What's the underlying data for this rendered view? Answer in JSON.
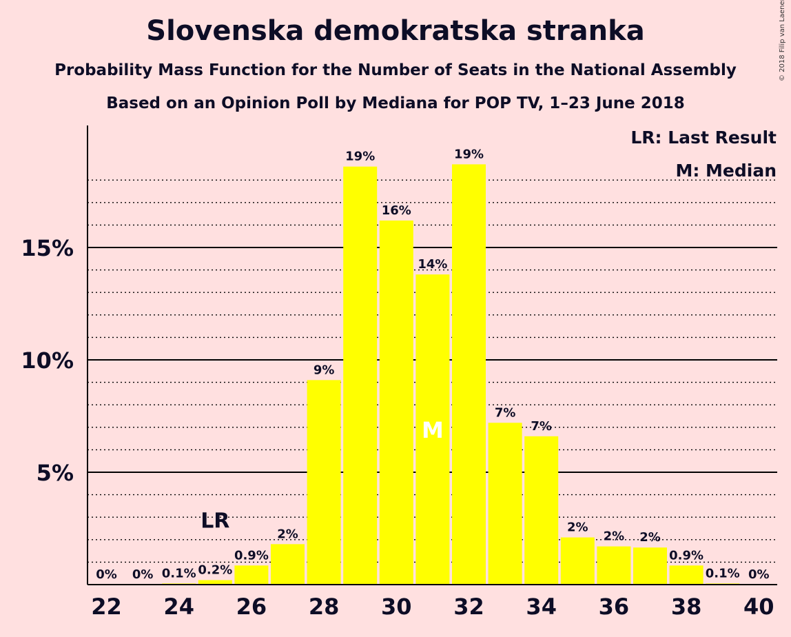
{
  "title": "Slovenska demokratska stranka",
  "subtitle": "Probability Mass Function for the Number of Seats in the National Assembly",
  "subtitle2": "Based on an Opinion Poll by Mediana for POP TV, 1–23 June 2018",
  "copyright": "© 2018 Filip van Laenen",
  "legend": {
    "lr": "LR: Last Result",
    "m": "M: Median"
  },
  "markers": {
    "last_result_label": "LR",
    "last_result_seats": 25,
    "median_label": "M",
    "median_seats": 31
  },
  "chart_data": {
    "type": "bar",
    "x": [
      22,
      23,
      24,
      25,
      26,
      27,
      28,
      29,
      30,
      31,
      32,
      33,
      34,
      35,
      36,
      37,
      38,
      39,
      40
    ],
    "values": [
      0,
      0,
      0.05,
      0.2,
      0.85,
      1.8,
      9.1,
      18.6,
      16.2,
      13.8,
      18.7,
      7.2,
      6.6,
      2.1,
      1.7,
      1.65,
      0.85,
      0.05,
      0
    ],
    "labels": [
      "0%",
      "0%",
      "0.1%",
      "0.2%",
      "0.9%",
      "2%",
      "9%",
      "19%",
      "16%",
      "14%",
      "19%",
      "7%",
      "7%",
      "2%",
      "2%",
      "2%",
      "0.9%",
      "0.1%",
      "0%"
    ],
    "x_tick_labels": [
      "22",
      "24",
      "26",
      "28",
      "30",
      "32",
      "34",
      "36",
      "38",
      "40"
    ],
    "x_ticks": [
      22,
      24,
      26,
      28,
      30,
      32,
      34,
      36,
      38,
      40
    ],
    "y_ticks": [
      5,
      10,
      15
    ],
    "y_tick_labels": [
      "5%",
      "10%",
      "15%"
    ],
    "ylim": [
      0,
      20
    ],
    "xlabel": "",
    "ylabel": "",
    "grid": "dotted minor every 1%, solid major every 5%",
    "legend_position": "top-right",
    "colors": {
      "bar": "#ffff00",
      "background": "#ffe0e0",
      "text": "#0d0d26"
    }
  }
}
